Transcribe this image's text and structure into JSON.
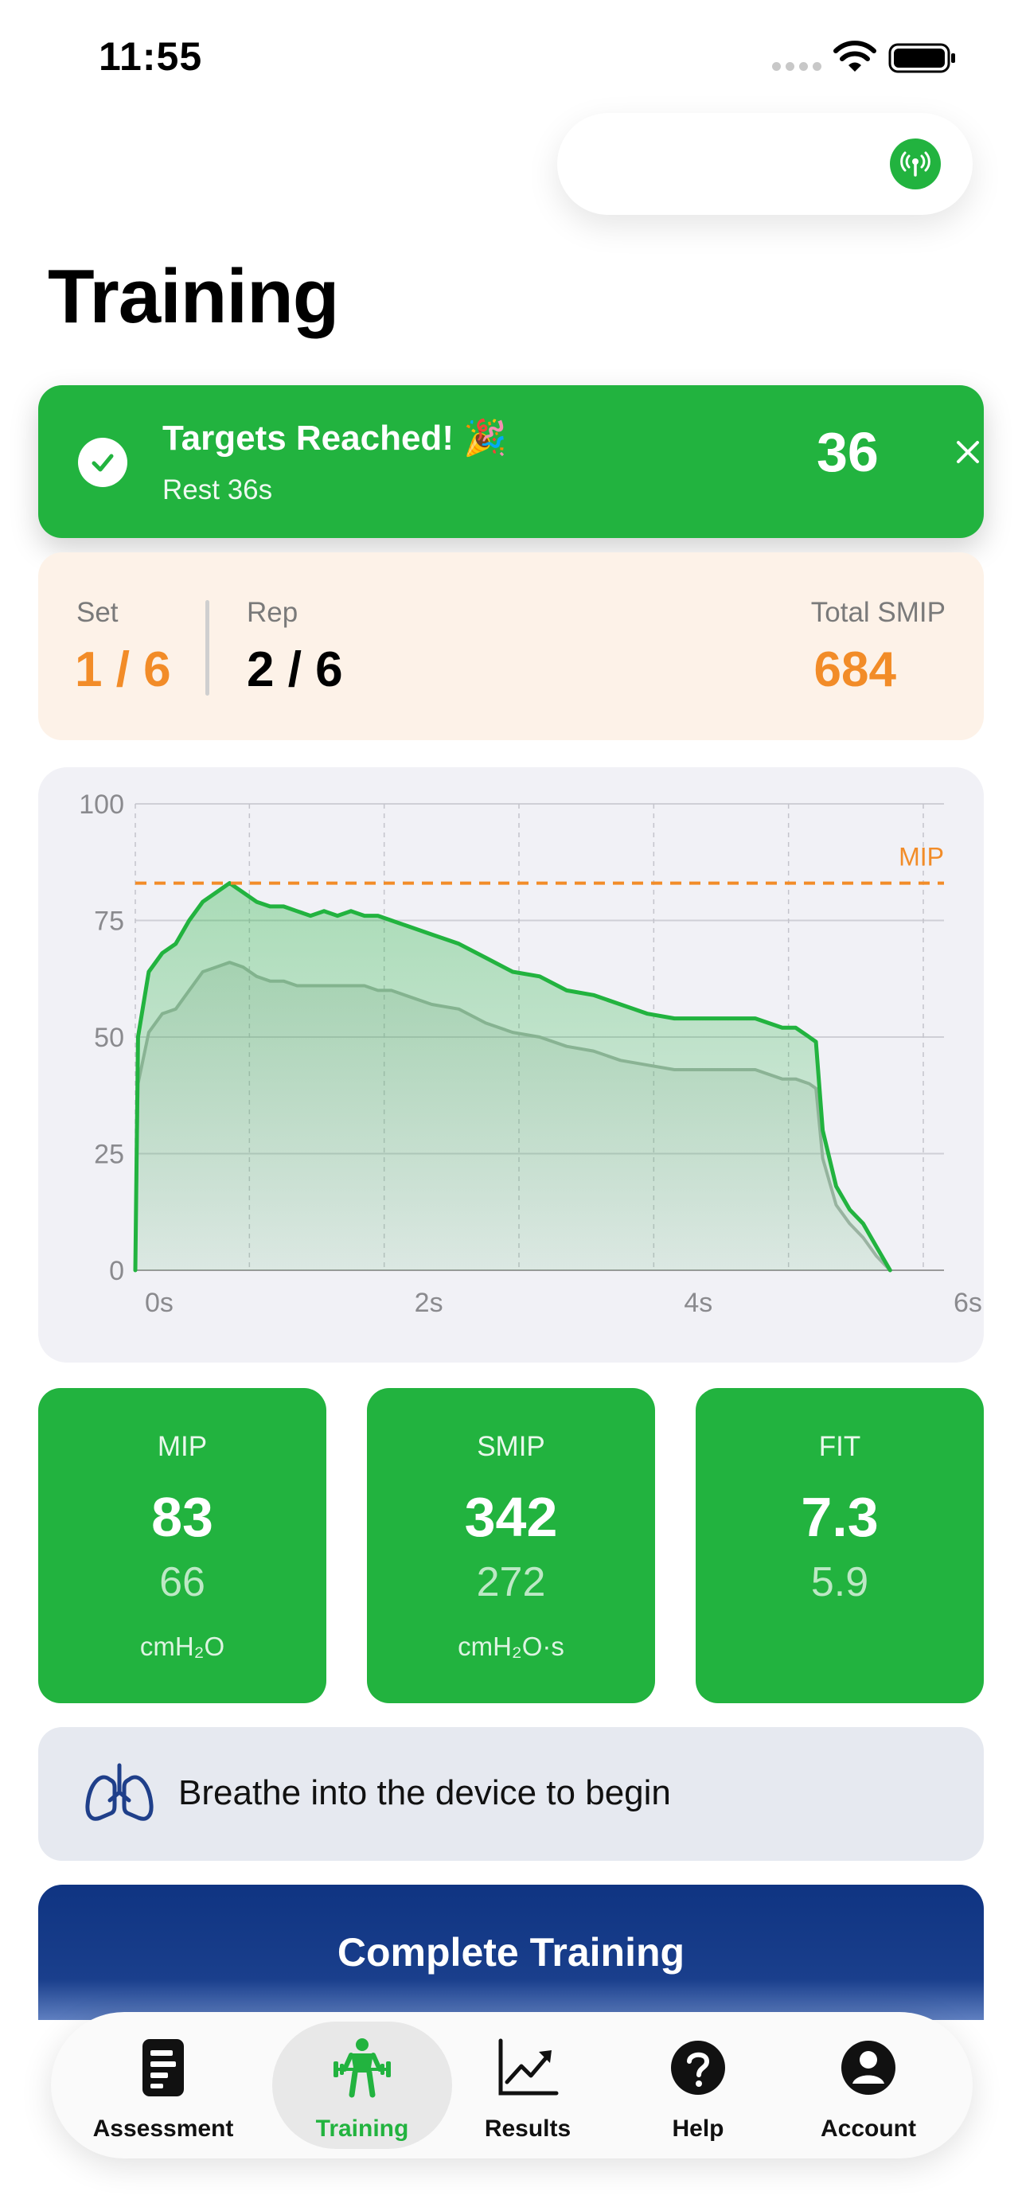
{
  "status_bar": {
    "time": "11:55"
  },
  "header": {
    "title": "Training"
  },
  "device": {
    "icon": "antenna-icon",
    "color": "#22b33f"
  },
  "banner": {
    "title": "Targets Reached! 🎉",
    "subtitle": "Rest 36s",
    "countdown": "36",
    "color": "#22b33f"
  },
  "stats": {
    "set_label": "Set",
    "set_value": "1 / 6",
    "rep_label": "Rep",
    "rep_value": "2 / 6",
    "total_label": "Total SMIP",
    "total_value": "684",
    "accent_color": "#f28c28"
  },
  "chart_data": {
    "type": "area",
    "x_ticks": [
      "0s",
      "2s",
      "4s",
      "6s"
    ],
    "y_ticks": [
      "0",
      "25",
      "50",
      "75",
      "100"
    ],
    "ylim": [
      0,
      100
    ],
    "xlim": [
      0,
      6
    ],
    "reference_line": {
      "label": "MIP",
      "value": 83,
      "color": "#f28c28"
    },
    "series": [
      {
        "color": "#22b33f",
        "x": [
          0,
          0.02,
          0.1,
          0.2,
          0.3,
          0.4,
          0.5,
          0.6,
          0.7,
          0.8,
          0.9,
          1.0,
          1.1,
          1.2,
          1.3,
          1.4,
          1.5,
          1.6,
          1.7,
          1.8,
          1.9,
          2.0,
          2.2,
          2.4,
          2.6,
          2.8,
          3.0,
          3.2,
          3.4,
          3.6,
          3.8,
          4.0,
          4.2,
          4.4,
          4.6,
          4.8,
          4.9,
          5.0,
          5.05,
          5.1,
          5.2,
          5.3,
          5.4,
          5.5,
          5.6
        ],
        "values": [
          0,
          50,
          64,
          68,
          70,
          75,
          79,
          81,
          83,
          81,
          79,
          78,
          78,
          77,
          76,
          77,
          76,
          77,
          76,
          76,
          75,
          74,
          72,
          70,
          67,
          64,
          63,
          60,
          59,
          57,
          55,
          54,
          54,
          54,
          54,
          52,
          52,
          50,
          49,
          30,
          18,
          13,
          10,
          5,
          0
        ]
      },
      {
        "color": "#a8b3ad",
        "x": [
          0,
          0.02,
          0.1,
          0.2,
          0.3,
          0.4,
          0.5,
          0.6,
          0.7,
          0.8,
          0.9,
          1.0,
          1.1,
          1.2,
          1.3,
          1.4,
          1.5,
          1.6,
          1.7,
          1.8,
          1.9,
          2.0,
          2.2,
          2.4,
          2.6,
          2.8,
          3.0,
          3.2,
          3.4,
          3.6,
          3.8,
          4.0,
          4.2,
          4.4,
          4.6,
          4.8,
          4.9,
          5.0,
          5.05,
          5.1,
          5.2,
          5.3,
          5.4,
          5.5,
          5.6
        ],
        "values": [
          0,
          40,
          51,
          55,
          56,
          60,
          64,
          65,
          66,
          65,
          63,
          62,
          62,
          61,
          61,
          61,
          61,
          61,
          61,
          60,
          60,
          59,
          57,
          56,
          53,
          51,
          50,
          48,
          47,
          45,
          44,
          43,
          43,
          43,
          43,
          41,
          41,
          40,
          39,
          24,
          14,
          10,
          7,
          3,
          0
        ]
      }
    ],
    "grid": true
  },
  "metrics": [
    {
      "label": "MIP",
      "primary": "83",
      "secondary": "66",
      "unit": "cmH₂O"
    },
    {
      "label": "SMIP",
      "primary": "342",
      "secondary": "272",
      "unit": "cmH₂O·s"
    },
    {
      "label": "FIT",
      "primary": "7.3",
      "secondary": "5.9",
      "unit": ""
    }
  ],
  "hint": {
    "icon": "lungs-icon",
    "text": "Breathe into the device to begin"
  },
  "complete_button": {
    "label": "Complete Training",
    "color": "#0f3482"
  },
  "tab_bar": {
    "active_color": "#22b33f",
    "items": [
      {
        "label": "Assessment",
        "icon": "document-icon"
      },
      {
        "label": "Training",
        "icon": "weightlifter-icon"
      },
      {
        "label": "Results",
        "icon": "chart-trend-icon"
      },
      {
        "label": "Help",
        "icon": "question-icon"
      },
      {
        "label": "Account",
        "icon": "person-icon"
      }
    ]
  }
}
